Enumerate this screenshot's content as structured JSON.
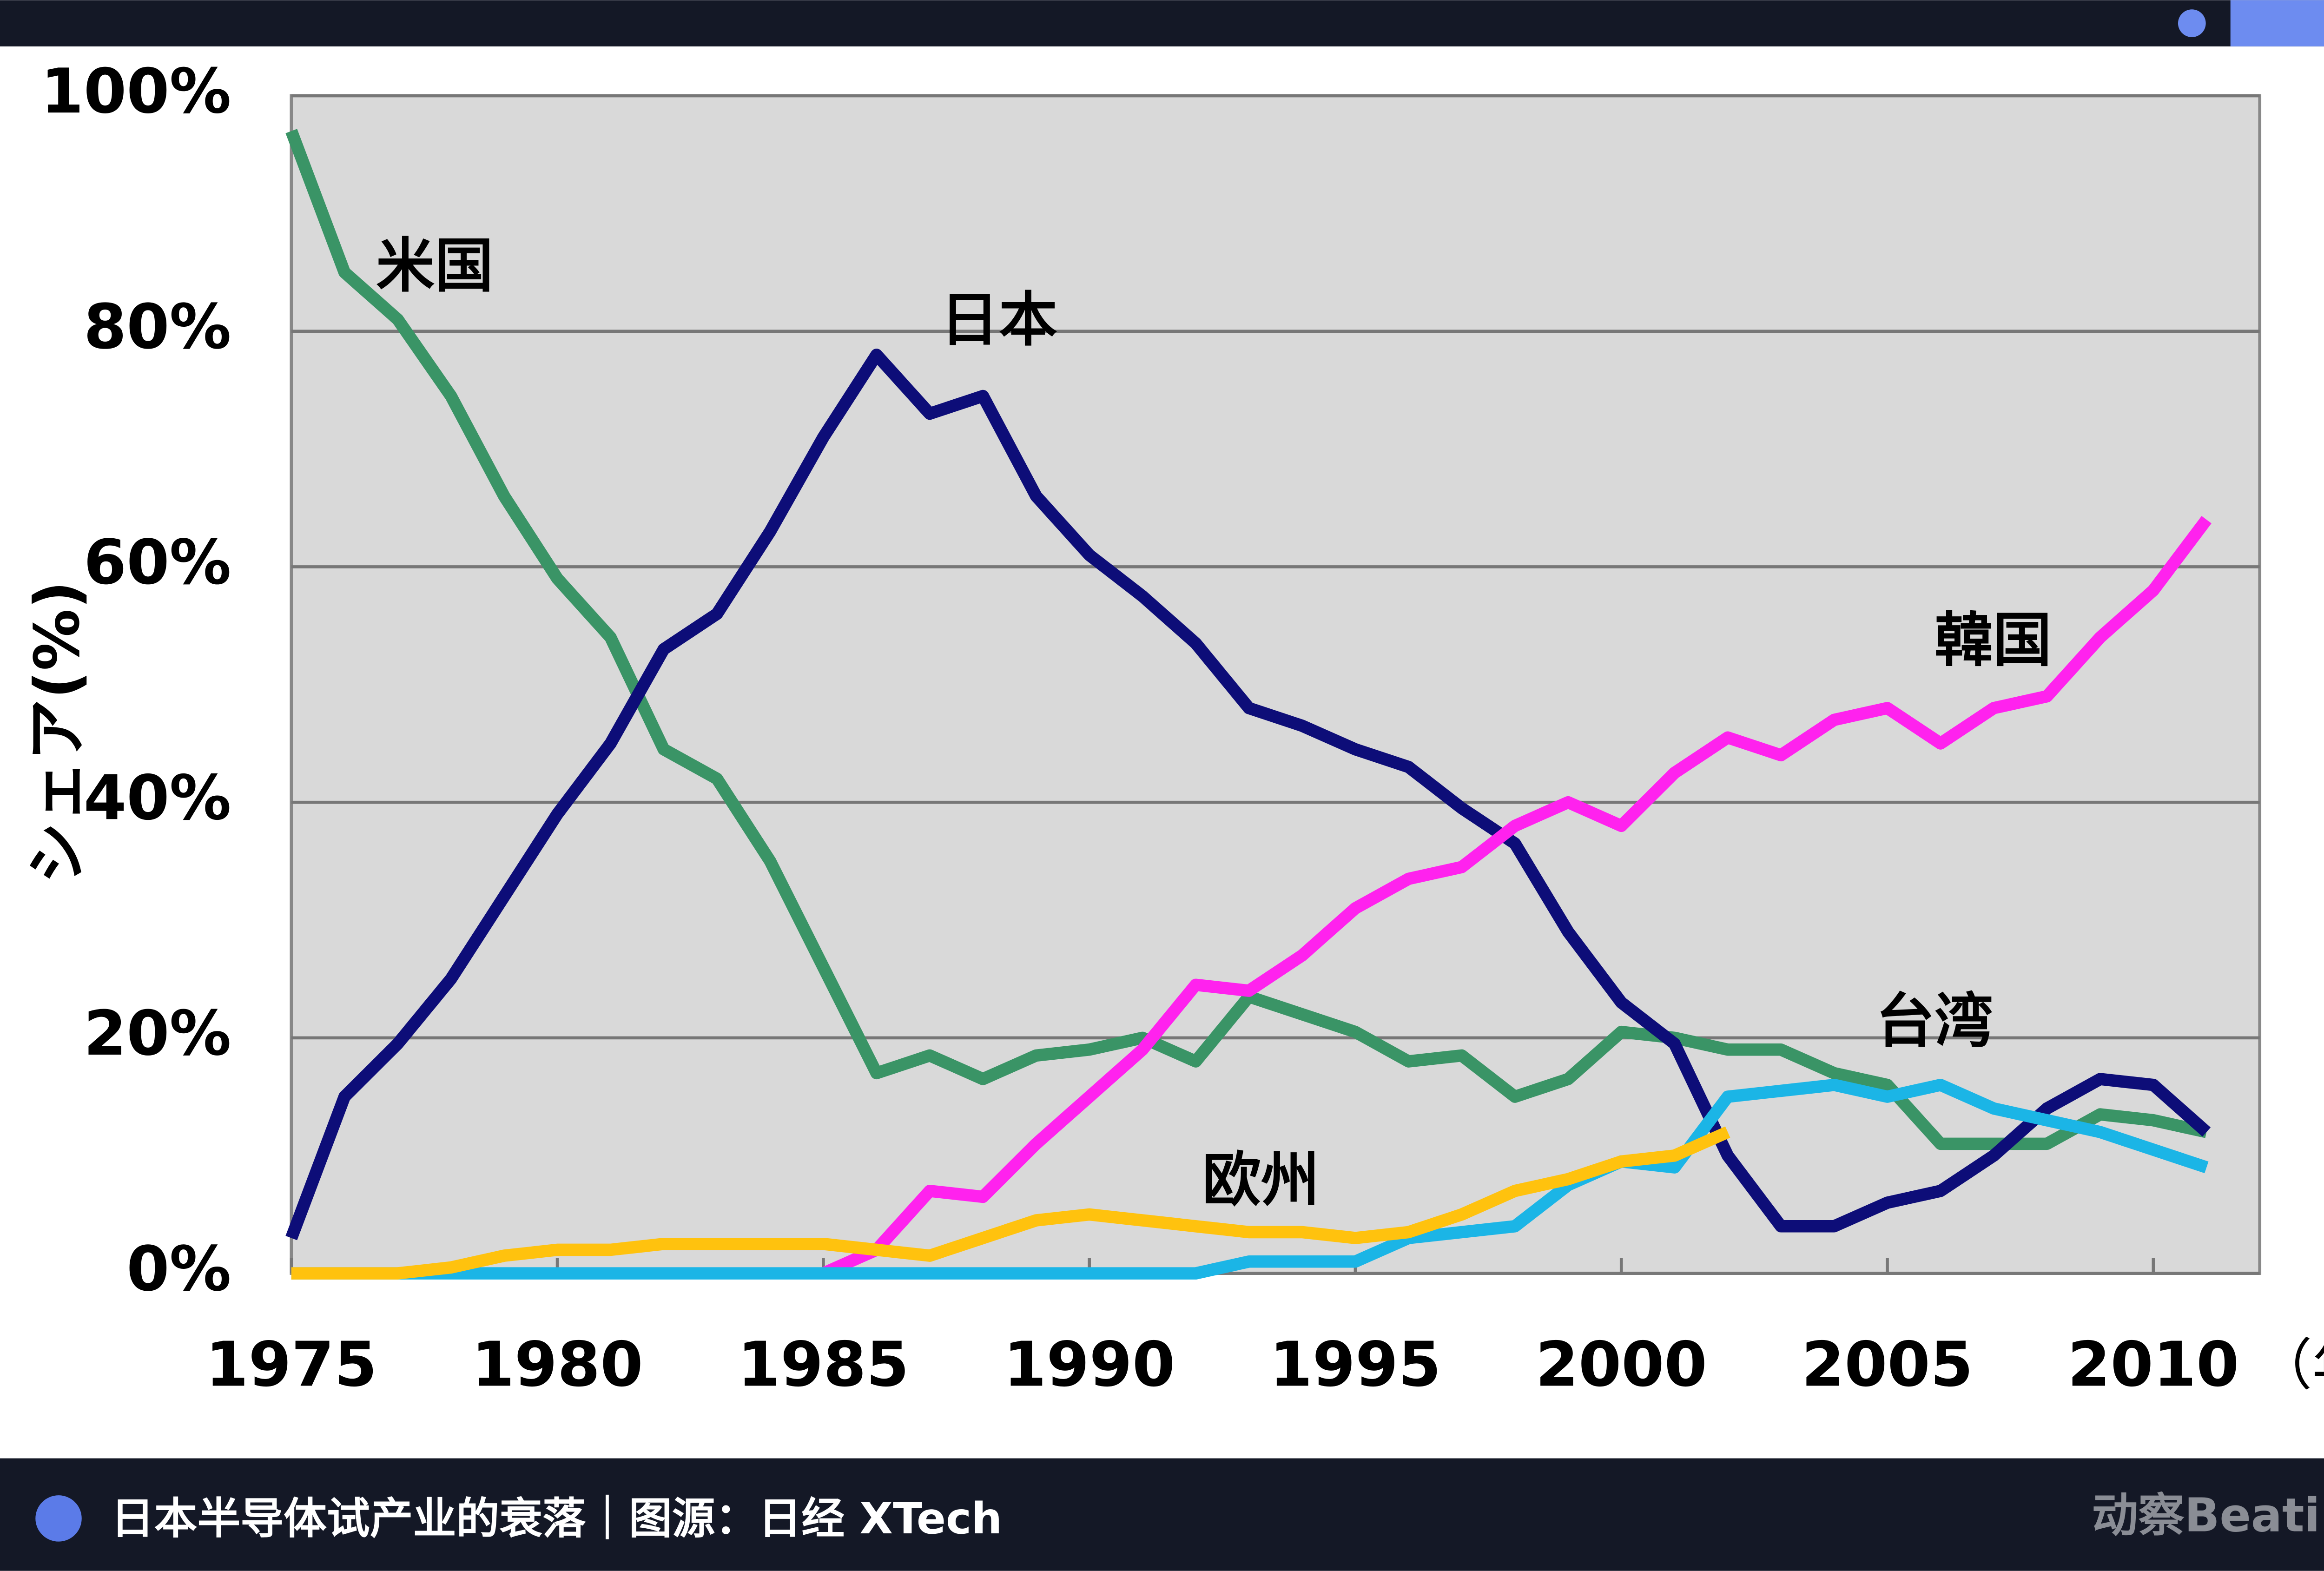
{
  "chart_data": {
    "type": "line",
    "y_label": "シェア(%)",
    "x_unit": "（年）",
    "caption": "日本半导体试产业的衰落｜图源：日经 XTech",
    "brand": "动察Beating",
    "x": [
      1975,
      1976,
      1977,
      1978,
      1979,
      1980,
      1981,
      1982,
      1983,
      1984,
      1985,
      1986,
      1987,
      1988,
      1989,
      1990,
      1991,
      1992,
      1993,
      1994,
      1995,
      1996,
      1997,
      1998,
      1999,
      2000,
      2001,
      2002,
      2003,
      2004,
      2005,
      2006,
      2007,
      2008,
      2009,
      2010,
      2011
    ],
    "xlim": [
      1975,
      2012
    ],
    "xticks": [
      1975,
      1980,
      1985,
      1990,
      1995,
      2000,
      2005,
      2010
    ],
    "ylim": [
      0,
      100
    ],
    "yticks": [
      {
        "value": 0,
        "label": "0%"
      },
      {
        "value": 20,
        "label": "20%"
      },
      {
        "value": 40,
        "label": "40%"
      },
      {
        "value": 60,
        "label": "60%"
      },
      {
        "value": 80,
        "label": "80%"
      },
      {
        "value": 100,
        "label": "100%"
      }
    ],
    "grid": true,
    "series": [
      {
        "name": "米国",
        "color": "#3a9466",
        "values": [
          97,
          85,
          81,
          74.5,
          66,
          59,
          54,
          44.5,
          42,
          35,
          26,
          17,
          18.5,
          16.5,
          18.5,
          19,
          20,
          18,
          23.5,
          22,
          20.5,
          18,
          18.5,
          15,
          16.5,
          20.5,
          20,
          19,
          19,
          17,
          16,
          11,
          11,
          11,
          13.5,
          13,
          12
        ]
      },
      {
        "name": "日本",
        "color": "#0d0d78",
        "values": [
          3,
          15,
          19.5,
          25,
          32,
          39,
          45,
          53,
          56,
          63,
          71,
          78,
          73,
          74.5,
          66,
          61,
          57.5,
          53.5,
          48,
          46.5,
          44.5,
          43,
          39.5,
          36.5,
          29,
          23,
          19.5,
          10,
          4,
          4,
          6,
          7,
          10,
          14,
          16.5,
          16,
          12
        ]
      },
      {
        "name": "韓国",
        "color": "#ff22ee",
        "values": [
          null,
          null,
          null,
          null,
          null,
          null,
          null,
          null,
          null,
          null,
          0,
          2,
          7,
          6.5,
          11,
          15,
          19,
          24.5,
          24,
          27,
          31,
          33.5,
          34.5,
          38,
          40,
          38,
          42.5,
          45.5,
          44,
          47,
          48,
          45,
          48,
          49,
          54,
          58,
          64
        ]
      },
      {
        "name": "台湾",
        "color": "#1bb5e6",
        "values": [
          0,
          0,
          0,
          0,
          0,
          0,
          0,
          0,
          0,
          0,
          0,
          0,
          0,
          0,
          0,
          0,
          0,
          0,
          1,
          1,
          1,
          3,
          3.5,
          4,
          7.5,
          9.5,
          9,
          15,
          15.5,
          16,
          15,
          16,
          14,
          13,
          12,
          10.5,
          9
        ]
      },
      {
        "name": "欧州",
        "color": "#ffc20e",
        "values": [
          0,
          0,
          0,
          0.5,
          1.5,
          2,
          2,
          2.5,
          2.5,
          2.5,
          2.5,
          2,
          1.5,
          3,
          4.5,
          5,
          4.5,
          4,
          3.5,
          3.5,
          3,
          3.5,
          5,
          7,
          8,
          9.5,
          10,
          12,
          null,
          null,
          null,
          null,
          null,
          null,
          null,
          null,
          null
        ]
      }
    ]
  }
}
